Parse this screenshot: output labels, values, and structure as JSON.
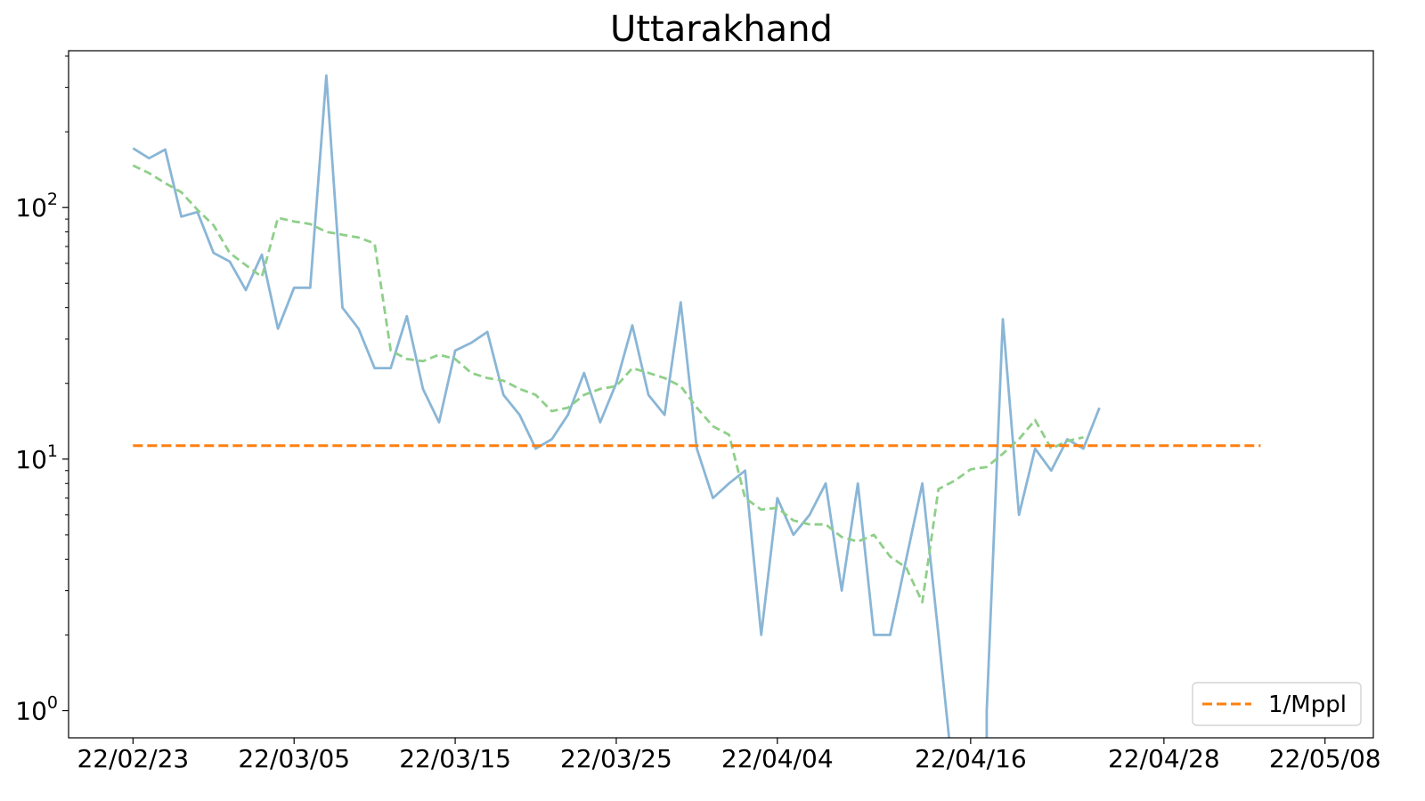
{
  "chart_data": {
    "type": "line",
    "title": "Uttarakhand",
    "xlabel": "",
    "ylabel": "",
    "y_scale": "log",
    "ylim": [
      0.78,
      420
    ],
    "xlim": [
      "2022-02-19",
      "2022-05-11"
    ],
    "grid": false,
    "legend_position": "lower-right",
    "x_ticks": [
      {
        "date": "2022-02-23",
        "label": "22/02/23"
      },
      {
        "date": "2022-03-05",
        "label": "22/03/05"
      },
      {
        "date": "2022-03-15",
        "label": "22/03/15"
      },
      {
        "date": "2022-03-25",
        "label": "22/03/25"
      },
      {
        "date": "2022-04-04",
        "label": "22/04/04"
      },
      {
        "date": "2022-04-16",
        "label": "22/04/16"
      },
      {
        "date": "2022-04-28",
        "label": "22/04/28"
      },
      {
        "date": "2022-05-08",
        "label": "22/05/08"
      }
    ],
    "y_ticks": [
      {
        "value": 1,
        "base": "10",
        "exp": "0"
      },
      {
        "value": 10,
        "base": "10",
        "exp": "1"
      },
      {
        "value": 100,
        "base": "10",
        "exp": "2"
      }
    ],
    "series": [
      {
        "style": "solid",
        "color": "#8ab6d6",
        "points": [
          [
            "2022-02-23",
            172
          ],
          [
            "2022-02-24",
            157
          ],
          [
            "2022-02-25",
            170
          ],
          [
            "2022-02-26",
            92
          ],
          [
            "2022-02-27",
            96
          ],
          [
            "2022-02-28",
            66
          ],
          [
            "2022-03-01",
            61
          ],
          [
            "2022-03-02",
            47
          ],
          [
            "2022-03-03",
            65
          ],
          [
            "2022-03-04",
            33
          ],
          [
            "2022-03-05",
            48
          ],
          [
            "2022-03-06",
            48
          ],
          [
            "2022-03-07",
            335
          ],
          [
            "2022-03-08",
            40
          ],
          [
            "2022-03-09",
            33
          ],
          [
            "2022-03-10",
            23
          ],
          [
            "2022-03-11",
            23
          ],
          [
            "2022-03-12",
            37
          ],
          [
            "2022-03-13",
            19
          ],
          [
            "2022-03-14",
            14
          ],
          [
            "2022-03-15",
            27
          ],
          [
            "2022-03-16",
            29
          ],
          [
            "2022-03-17",
            32
          ],
          [
            "2022-03-18",
            18
          ],
          [
            "2022-03-19",
            15
          ],
          [
            "2022-03-20",
            11
          ],
          [
            "2022-03-21",
            12
          ],
          [
            "2022-03-22",
            15
          ],
          [
            "2022-03-23",
            22
          ],
          [
            "2022-03-24",
            14
          ],
          [
            "2022-03-25",
            20
          ],
          [
            "2022-03-26",
            34
          ],
          [
            "2022-03-27",
            18
          ],
          [
            "2022-03-28",
            15
          ],
          [
            "2022-03-29",
            42
          ],
          [
            "2022-03-30",
            11
          ],
          [
            "2022-03-31",
            7
          ],
          [
            "2022-04-01",
            8
          ],
          [
            "2022-04-02",
            9
          ],
          [
            "2022-04-03",
            2
          ],
          [
            "2022-04-04",
            7
          ],
          [
            "2022-04-05",
            5
          ],
          [
            "2022-04-06",
            6
          ],
          [
            "2022-04-07",
            8
          ],
          [
            "2022-04-08",
            3
          ],
          [
            "2022-04-09",
            8
          ],
          [
            "2022-04-10",
            2
          ],
          [
            "2022-04-11",
            2
          ],
          [
            "2022-04-12",
            4
          ],
          [
            "2022-04-13",
            8
          ],
          [
            "2022-04-14",
            2
          ],
          [
            "2022-04-15",
            null
          ],
          [
            "2022-04-16",
            null
          ],
          [
            "2022-04-17",
            1
          ],
          [
            "2022-04-18",
            36
          ],
          [
            "2022-04-19",
            6
          ],
          [
            "2022-04-20",
            11
          ],
          [
            "2022-04-21",
            9
          ],
          [
            "2022-04-22",
            12
          ],
          [
            "2022-04-23",
            11
          ],
          [
            "2022-04-24",
            16
          ]
        ]
      },
      {
        "style": "dashed",
        "color": "#8fcf8a",
        "points": [
          [
            "2022-02-23",
            147
          ],
          [
            "2022-02-24",
            137
          ],
          [
            "2022-02-25",
            125
          ],
          [
            "2022-02-26",
            115
          ],
          [
            "2022-02-27",
            98
          ],
          [
            "2022-02-28",
            85
          ],
          [
            "2022-03-01",
            66
          ],
          [
            "2022-03-02",
            59
          ],
          [
            "2022-03-03",
            53
          ],
          [
            "2022-03-04",
            91
          ],
          [
            "2022-03-05",
            88
          ],
          [
            "2022-03-06",
            86
          ],
          [
            "2022-03-07",
            80
          ],
          [
            "2022-03-08",
            78
          ],
          [
            "2022-03-09",
            76
          ],
          [
            "2022-03-10",
            72
          ],
          [
            "2022-03-11",
            27
          ],
          [
            "2022-03-12",
            25
          ],
          [
            "2022-03-13",
            24.5
          ],
          [
            "2022-03-14",
            26
          ],
          [
            "2022-03-15",
            25
          ],
          [
            "2022-03-16",
            22
          ],
          [
            "2022-03-17",
            21
          ],
          [
            "2022-03-18",
            20.5
          ],
          [
            "2022-03-19",
            19
          ],
          [
            "2022-03-20",
            18
          ],
          [
            "2022-03-21",
            15.5
          ],
          [
            "2022-03-22",
            16
          ],
          [
            "2022-03-23",
            18
          ],
          [
            "2022-03-24",
            19
          ],
          [
            "2022-03-25",
            19.5
          ],
          [
            "2022-03-26",
            23
          ],
          [
            "2022-03-27",
            22
          ],
          [
            "2022-03-28",
            21
          ],
          [
            "2022-03-29",
            19.5
          ],
          [
            "2022-03-30",
            16
          ],
          [
            "2022-03-31",
            13.5
          ],
          [
            "2022-04-01",
            12.5
          ],
          [
            "2022-04-02",
            7
          ],
          [
            "2022-04-03",
            6.3
          ],
          [
            "2022-04-04",
            6.4
          ],
          [
            "2022-04-05",
            5.7
          ],
          [
            "2022-04-06",
            5.5
          ],
          [
            "2022-04-07",
            5.5
          ],
          [
            "2022-04-08",
            4.9
          ],
          [
            "2022-04-09",
            4.7
          ],
          [
            "2022-04-10",
            5
          ],
          [
            "2022-04-11",
            4.1
          ],
          [
            "2022-04-12",
            3.7
          ],
          [
            "2022-04-13",
            2.7
          ],
          [
            "2022-04-14",
            7.6
          ],
          [
            "2022-04-15",
            8.2
          ],
          [
            "2022-04-16",
            9.1
          ],
          [
            "2022-04-17",
            9.3
          ],
          [
            "2022-04-18",
            10.5
          ],
          [
            "2022-04-19",
            12
          ],
          [
            "2022-04-20",
            14.3
          ],
          [
            "2022-04-21",
            11
          ],
          [
            "2022-04-22",
            11.8
          ],
          [
            "2022-04-23",
            12.2
          ]
        ]
      },
      {
        "name": "1/Mppl",
        "style": "dashed",
        "color": "#ff7f0e",
        "points": [
          [
            "2022-02-23",
            11.3
          ],
          [
            "2022-05-04",
            11.3
          ]
        ]
      }
    ]
  }
}
